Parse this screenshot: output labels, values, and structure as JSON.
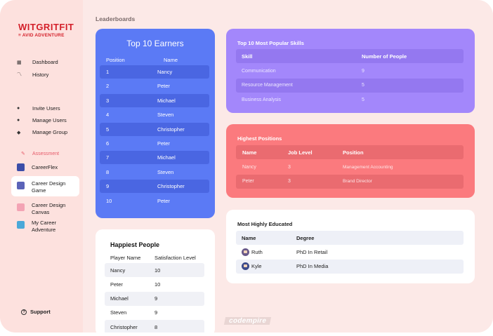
{
  "brand": {
    "name": "WITGRITFIT",
    "subtitle": "≡ AVID ADVENTURE"
  },
  "sidebar": {
    "group1": [
      {
        "label": "Dashboard",
        "icon": "dashboard-icon"
      },
      {
        "label": "History",
        "icon": "history-icon"
      }
    ],
    "group2": [
      {
        "label": "Invite Users",
        "icon": "user-icon"
      },
      {
        "label": "Manage Users",
        "icon": "user-icon"
      },
      {
        "label": "Manage Group",
        "icon": "group-icon"
      }
    ],
    "section_label": "Assessment",
    "group3": [
      {
        "label": "CareerFlex",
        "icon": "careerflex-icon"
      },
      {
        "label": "Career Design Game",
        "icon": "career-design-game-icon",
        "active": true
      },
      {
        "label": "Career Design Canvas",
        "icon": "career-design-canvas-icon"
      },
      {
        "label": "My Career Adventure",
        "icon": "my-career-adventure-icon"
      }
    ],
    "support_label": "Support"
  },
  "page_title": "Leaderboards",
  "earners": {
    "title": "Top 10 Earners",
    "headers": [
      "Position",
      "Name"
    ],
    "rows": [
      {
        "position": "1",
        "name": "Nancy"
      },
      {
        "position": "2",
        "name": "Peter"
      },
      {
        "position": "3",
        "name": "Michael"
      },
      {
        "position": "4",
        "name": "Steven"
      },
      {
        "position": "5",
        "name": "Christopher"
      },
      {
        "position": "6",
        "name": "Peter"
      },
      {
        "position": "7",
        "name": "Michael"
      },
      {
        "position": "8",
        "name": "Steven"
      },
      {
        "position": "9",
        "name": "Christopher"
      },
      {
        "position": "10",
        "name": "Peter"
      }
    ]
  },
  "skills": {
    "title": "Top 10 Most Popular Skills",
    "headers": [
      "Skill",
      "Number of People"
    ],
    "rows": [
      {
        "skill": "Communication",
        "count": "9"
      },
      {
        "skill": "Resource Management",
        "count": "5"
      },
      {
        "skill": "Business Analysis",
        "count": "5"
      }
    ]
  },
  "positions": {
    "title": "Highest Positions",
    "headers": [
      "Name",
      "Job Level",
      "Position"
    ],
    "rows": [
      {
        "name": "Nancy",
        "level": "3",
        "position": "Management Accounting"
      },
      {
        "name": "Peter",
        "level": "3",
        "position": "Brand Director"
      }
    ]
  },
  "educated": {
    "title": "Most Highly Educated",
    "headers": [
      "Name",
      "Degree"
    ],
    "rows": [
      {
        "name": "Ruth",
        "degree": "PhD In Retail",
        "avatar": "avatar-ruth"
      },
      {
        "name": "Kyle",
        "degree": "PhD In Media",
        "avatar": "avatar-kyle"
      }
    ]
  },
  "happiest": {
    "title": "Happiest People",
    "headers": [
      "Player Name",
      "Satisfaction Level"
    ],
    "rows": [
      {
        "name": "Nancy",
        "level": "10"
      },
      {
        "name": "Peter",
        "level": "10"
      },
      {
        "name": "Michael",
        "level": "9"
      },
      {
        "name": "Steven",
        "level": "9"
      },
      {
        "name": "Christopher",
        "level": "8"
      }
    ]
  },
  "watermark": "codempire",
  "colors": {
    "earners": "#5b7af5",
    "skills": "#a387fb",
    "positions": "#fb7a7e",
    "brand_red": "#d4202a",
    "accent_pink": "#e65b6a"
  }
}
